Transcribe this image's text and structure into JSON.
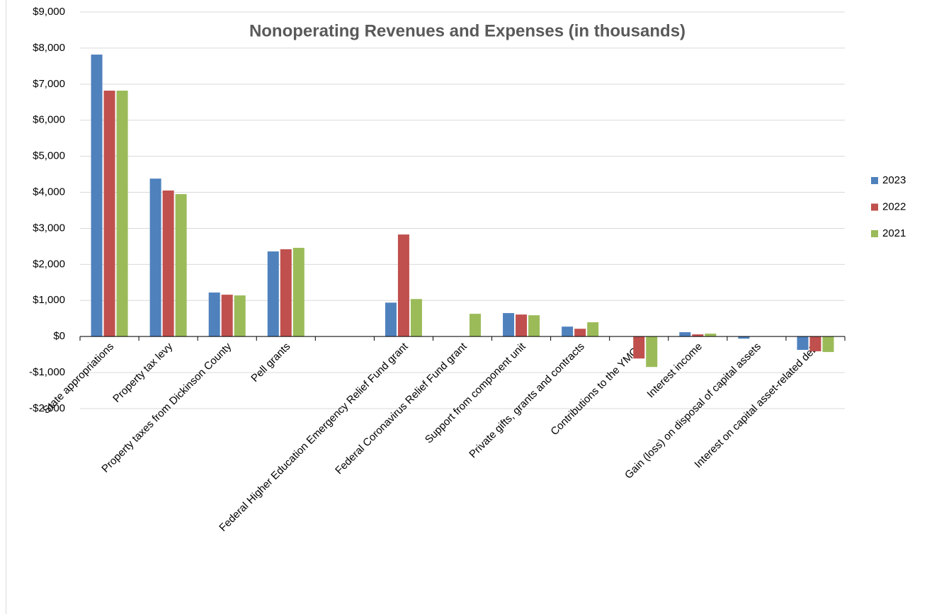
{
  "chart_data": {
    "type": "bar",
    "title": "Nonoperating Revenues and Expenses (in thousands)",
    "categories": [
      "State appropriations",
      "Property tax levy",
      "Property taxes from Dickinson County",
      "Pell grants",
      null,
      "Federal Higher Education Emergency Relief Fund grant",
      "Federal Coronavirus Relief Fund grant",
      "Support from component unit",
      "Private gifts, grants and contracts",
      "Contributions to the YMCA",
      "Interest income",
      "Gain (loss) on disposal of capital assets",
      "Interest on capital asset-related debt"
    ],
    "series": [
      {
        "name": "2023",
        "color": "#4f81bd",
        "values": [
          7820,
          4380,
          1220,
          2360,
          null,
          940,
          0,
          650,
          275,
          0,
          120,
          -60,
          -370
        ]
      },
      {
        "name": "2022",
        "color": "#c0504d",
        "values": [
          6820,
          4050,
          1160,
          2420,
          null,
          2830,
          0,
          610,
          215,
          -610,
          60,
          0,
          -410
        ]
      },
      {
        "name": "2021",
        "color": "#9bbb59",
        "values": [
          6820,
          3950,
          1140,
          2460,
          null,
          1040,
          630,
          590,
          395,
          -845,
          80,
          0,
          -430
        ]
      }
    ],
    "ylim": [
      -2000,
      9000
    ],
    "yticks": [
      {
        "value": -2000,
        "label": "-$2,000"
      },
      {
        "value": -1000,
        "label": "-$1,000"
      },
      {
        "value": 0,
        "label": "$0"
      },
      {
        "value": 1000,
        "label": "$1,000"
      },
      {
        "value": 2000,
        "label": "$2,000"
      },
      {
        "value": 3000,
        "label": "$3,000"
      },
      {
        "value": 4000,
        "label": "$4,000"
      },
      {
        "value": 5000,
        "label": "$5,000"
      },
      {
        "value": 6000,
        "label": "$6,000"
      },
      {
        "value": 7000,
        "label": "$7,000"
      },
      {
        "value": 8000,
        "label": "$8,000"
      },
      {
        "value": 9000,
        "label": "$9,000"
      }
    ],
    "grid": true,
    "legend": "right"
  }
}
